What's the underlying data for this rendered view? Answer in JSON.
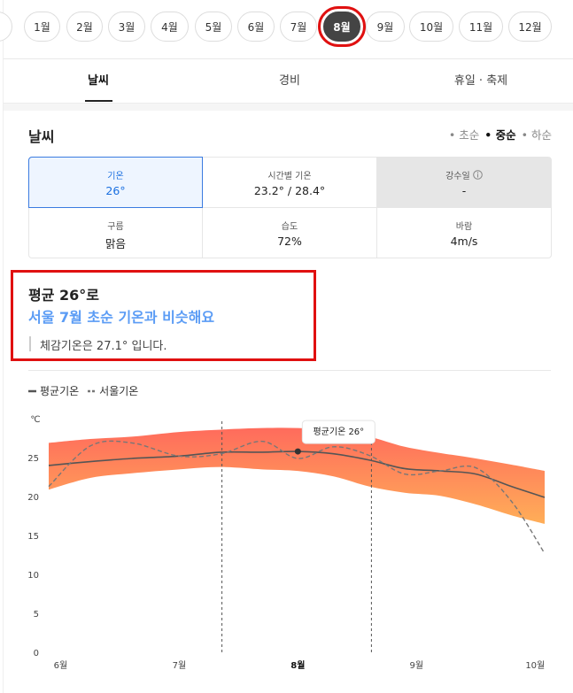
{
  "month_tabs": {
    "partial": "간",
    "months": [
      "1월",
      "2월",
      "3월",
      "4월",
      "5월",
      "6월",
      "7월",
      "8월",
      "9월",
      "10월",
      "11월",
      "12월"
    ],
    "selected": 7
  },
  "tabs": [
    "날씨",
    "경비",
    "휴일 · 축제"
  ],
  "section": {
    "title": "날씨",
    "periods": [
      "초순",
      "중순",
      "하순"
    ],
    "active_period": 1
  },
  "stats": [
    {
      "label": "기온",
      "value": "26°"
    },
    {
      "label": "시간별 기온",
      "value": "23.2° / 28.4°"
    },
    {
      "label": "강수일",
      "value": "-"
    },
    {
      "label": "구름",
      "value": "맑음"
    },
    {
      "label": "습도",
      "value": "72%"
    },
    {
      "label": "바람",
      "value": "4m/s"
    }
  ],
  "summary": {
    "headline": "평균 26°로",
    "comparison": "서울 7월 초순 기온과 비슷해요",
    "feels_like": "체감기온은 27.1° 입니다."
  },
  "chart_data": {
    "type": "line",
    "y_label": "℃",
    "x": [
      5.9,
      6.25,
      6.6,
      7.0,
      7.35,
      7.7,
      8.0,
      8.3,
      8.6,
      8.9,
      9.2,
      9.5,
      9.8,
      10.08
    ],
    "xlim": [
      5.9,
      10.08
    ],
    "xticks": [
      {
        "value": 6,
        "label": "6월"
      },
      {
        "value": 7,
        "label": "7월"
      },
      {
        "value": 8,
        "label": "8월"
      },
      {
        "value": 9,
        "label": "9월"
      },
      {
        "value": 10,
        "label": "10월"
      }
    ],
    "ylim": [
      0,
      30
    ],
    "yticks": [
      0,
      5,
      10,
      15,
      20,
      25
    ],
    "grid": false,
    "highlight": [
      7.36,
      8.62
    ],
    "band": {
      "high": [
        27.0,
        27.5,
        27.8,
        28.4,
        28.7,
        28.9,
        28.9,
        28.6,
        27.8,
        26.5,
        25.7,
        25.0,
        24.2,
        23.4
      ],
      "low": [
        21.0,
        22.5,
        23.1,
        23.6,
        23.9,
        23.6,
        23.4,
        22.7,
        21.4,
        20.6,
        20.2,
        19.1,
        17.7,
        16.6
      ],
      "colors": [
        "#ff6b5c",
        "#ffae58"
      ]
    },
    "series": [
      {
        "name": "평균기온",
        "color": "#555555",
        "dash": false,
        "values": [
          24.1,
          24.6,
          25.0,
          25.3,
          25.8,
          25.8,
          25.9,
          25.6,
          24.8,
          23.7,
          23.4,
          23.0,
          21.4,
          20.0
        ]
      },
      {
        "name": "서울기온",
        "color": "#777777",
        "dash": true,
        "values": [
          21.4,
          26.6,
          27.0,
          25.3,
          25.6,
          27.2,
          25.0,
          26.5,
          25.4,
          23.0,
          23.4,
          23.8,
          19.5,
          12.8
        ]
      }
    ],
    "tooltip": {
      "text": "평균기온 26°",
      "series": 0,
      "index": 6
    }
  }
}
